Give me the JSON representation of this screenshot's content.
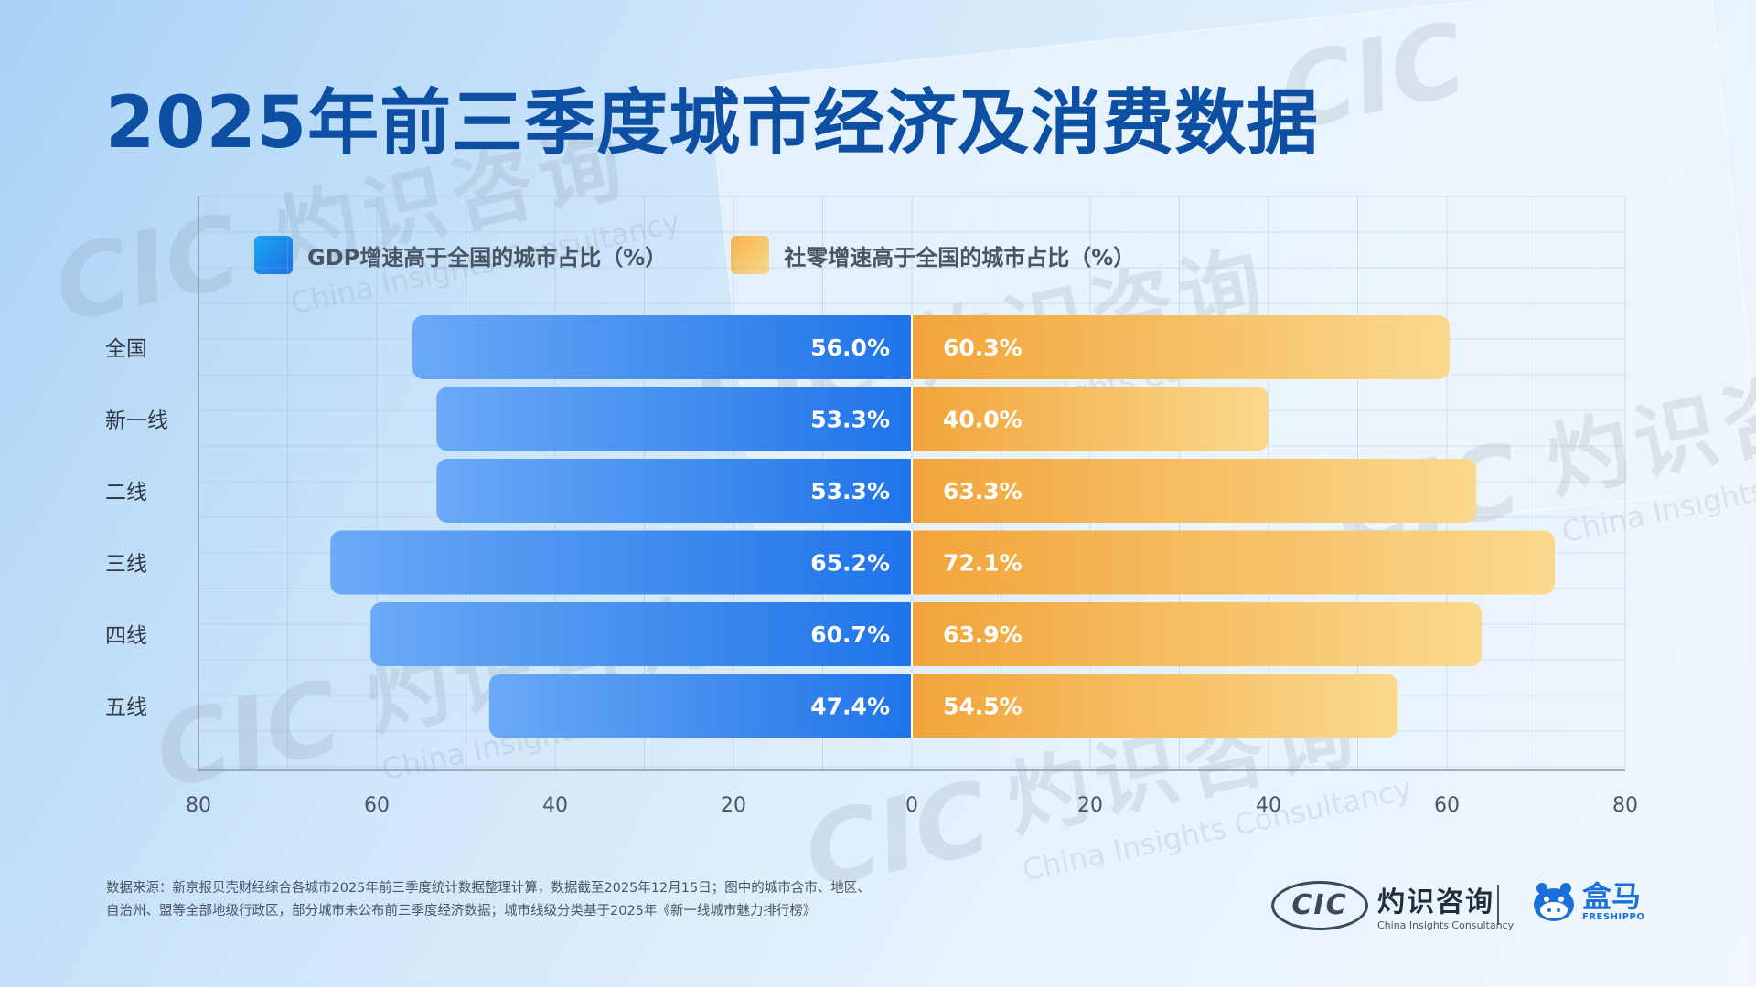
{
  "title": "2025年前三季度城市经济及消费数据",
  "legend": {
    "gdp": "GDP增速高于全国的城市占比（%）",
    "retail": "社零增速高于全国的城市占比（%）"
  },
  "watermark": {
    "cn": "灼识咨询",
    "en": "China Insights Consultancy",
    "cic": "CIC"
  },
  "chart_data": {
    "type": "bar",
    "orientation": "horizontal-diverging",
    "title": "2025年前三季度城市经济及消费数据",
    "categories": [
      "全国",
      "新一线",
      "二线",
      "三线",
      "四线",
      "五线"
    ],
    "series": [
      {
        "name": "GDP增速高于全国的城市占比（%）",
        "side": "left",
        "values": [
          56.0,
          53.3,
          53.3,
          65.2,
          60.7,
          47.4
        ],
        "labels": [
          "56.0%",
          "53.3%",
          "53.3%",
          "65.2%",
          "60.7%",
          "47.4%"
        ]
      },
      {
        "name": "社零增速高于全国的城市占比（%）",
        "side": "right",
        "values": [
          60.3,
          40.0,
          63.3,
          72.1,
          63.9,
          54.5
        ],
        "labels": [
          "60.3%",
          "40.0%",
          "63.3%",
          "72.1%",
          "63.9%",
          "54.5%"
        ]
      }
    ],
    "xlim": [
      -80,
      80
    ],
    "xticks": [
      80,
      60,
      40,
      20,
      0,
      20,
      40,
      60,
      80
    ],
    "grid": true,
    "legend_position": "top-left"
  },
  "colors": {
    "gdp_dark": "#1e73e8",
    "gdp_light": "#6aaaf6",
    "retail_dark": "#f2a43a",
    "retail_light": "#fad98e",
    "title": "#0d4fa3"
  },
  "footnote": {
    "line1": "数据来源：新京报贝壳财经综合各城市2025年前三季度统计数据整理计算，数据截至2025年12月15日；图中的城市含市、地区、",
    "line2": "自治州、盟等全部地级行政区，部分城市未公布前三季度经济数据；城市线级分类基于2025年《新一线城市魅力排行榜》"
  },
  "brands": {
    "cic_logo": "CIC",
    "cic_cn": "灼识咨询",
    "cic_en": "China Insights Consultancy",
    "hema_cn": "盒马",
    "hema_en": "FRESHIPPO"
  }
}
